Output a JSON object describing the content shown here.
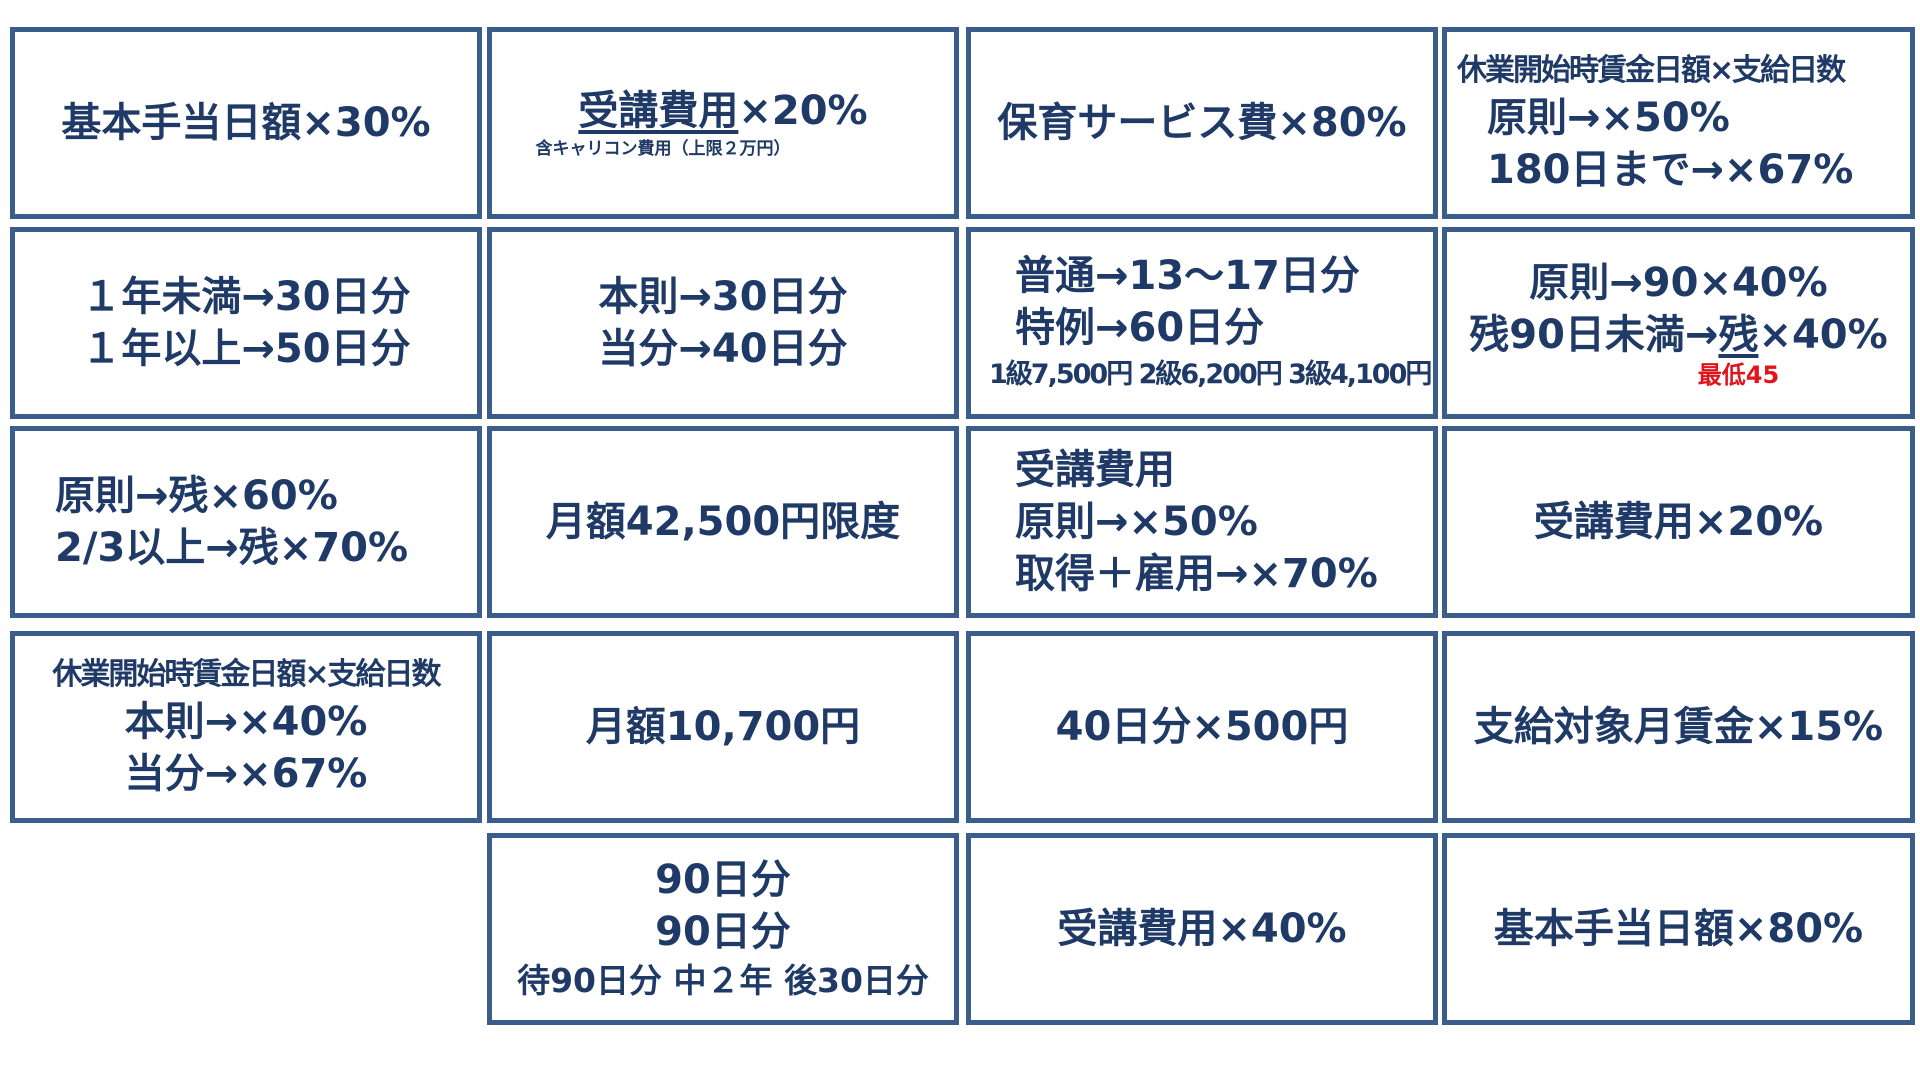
{
  "cells": {
    "r1c1": [
      "基本手当日額×30%"
    ],
    "r1c2": {
      "main_underlined": "受講費用",
      "main_rest": "×20%",
      "note": "含キャリコン費用（上限２万円）"
    },
    "r1c3": [
      "保育サービス費×80%"
    ],
    "r1c4": [
      "休業開始時賃金日額×支給日数",
      "原則→×50%",
      "180日まで→×67%"
    ],
    "r2c1": [
      "１年未満→30日分",
      "１年以上→50日分"
    ],
    "r2c2": [
      "本則→30日分",
      "当分→40日分"
    ],
    "r2c3": [
      "普通→13～17日分",
      "特例→60日分",
      "1級7,500円 2級6,200円 3級4,100円"
    ],
    "r2c4": {
      "line1": "原則→90×40%",
      "line2_pre": "残90日未満→",
      "line2_underlined": "残",
      "line2_post": "×40%",
      "note": "最低45"
    },
    "r3c1": [
      "原則→残×60%",
      "2/3以上→残×70%"
    ],
    "r3c2": [
      "月額42,500円限度"
    ],
    "r3c3": [
      "受講費用",
      "原則→×50%",
      "取得＋雇用→×70%"
    ],
    "r3c4": [
      "受講費用×20%"
    ],
    "r4c1": [
      "休業開始時賃金日額×支給日数",
      "本則→×40%",
      "当分→×67%"
    ],
    "r4c2": [
      "月額10,700円"
    ],
    "r4c3": [
      "40日分×500円"
    ],
    "r4c4": [
      "支給対象月賃金×15%"
    ],
    "r5c2": [
      "90日分",
      "90日分",
      "待90日分 中２年 後30日分"
    ],
    "r5c3": [
      "受講費用×40%"
    ],
    "r5c4": [
      "基本手当日額×80%"
    ]
  },
  "colors": {
    "border": "#3b5d8c",
    "text": "#1f3a66",
    "accent_red": "#e0141c"
  }
}
